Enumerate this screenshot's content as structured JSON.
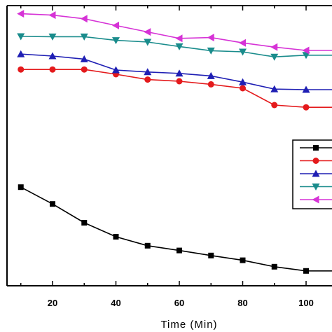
{
  "chart_data": {
    "type": "line",
    "xlabel": "Time (Min)",
    "ylabel": "",
    "title": "",
    "xlim": [
      0,
      120
    ],
    "ylim": [
      0,
      100
    ],
    "x_ticks": [
      20,
      40,
      60,
      80,
      100
    ],
    "x_tick_labels": [
      "20",
      "40",
      "60",
      "80",
      "100"
    ],
    "legend_position": "right",
    "x": [
      10,
      20,
      30,
      40,
      50,
      60,
      70,
      80,
      90,
      100,
      110
    ],
    "series": [
      {
        "marker": "square",
        "color": "#000000",
        "values": [
          35.2,
          29.2,
          22.5,
          17.5,
          14.3,
          12.6,
          10.8,
          9.1,
          6.8,
          5.3,
          5.3
        ]
      },
      {
        "marker": "circle",
        "color": "#e41a1c",
        "values": [
          77.2,
          77.2,
          77.2,
          75.5,
          73.6,
          73.0,
          71.9,
          70.5,
          64.5,
          63.7,
          63.7
        ]
      },
      {
        "marker": "triangle-up",
        "color": "#1f1fb4",
        "values": [
          82.7,
          82.0,
          80.9,
          77.0,
          76.3,
          75.8,
          74.9,
          72.7,
          70.2,
          70.0,
          70.0
        ]
      },
      {
        "marker": "triangle-down",
        "color": "#1a8c8c",
        "values": [
          89.0,
          88.9,
          88.9,
          87.6,
          87.0,
          85.4,
          83.9,
          83.5,
          81.7,
          82.3,
          82.3
        ]
      },
      {
        "marker": "triangle-left",
        "color": "#d633d6",
        "values": [
          97.1,
          96.6,
          95.3,
          92.9,
          90.6,
          88.3,
          88.6,
          86.7,
          85.2,
          84.0,
          84.0
        ]
      }
    ]
  }
}
